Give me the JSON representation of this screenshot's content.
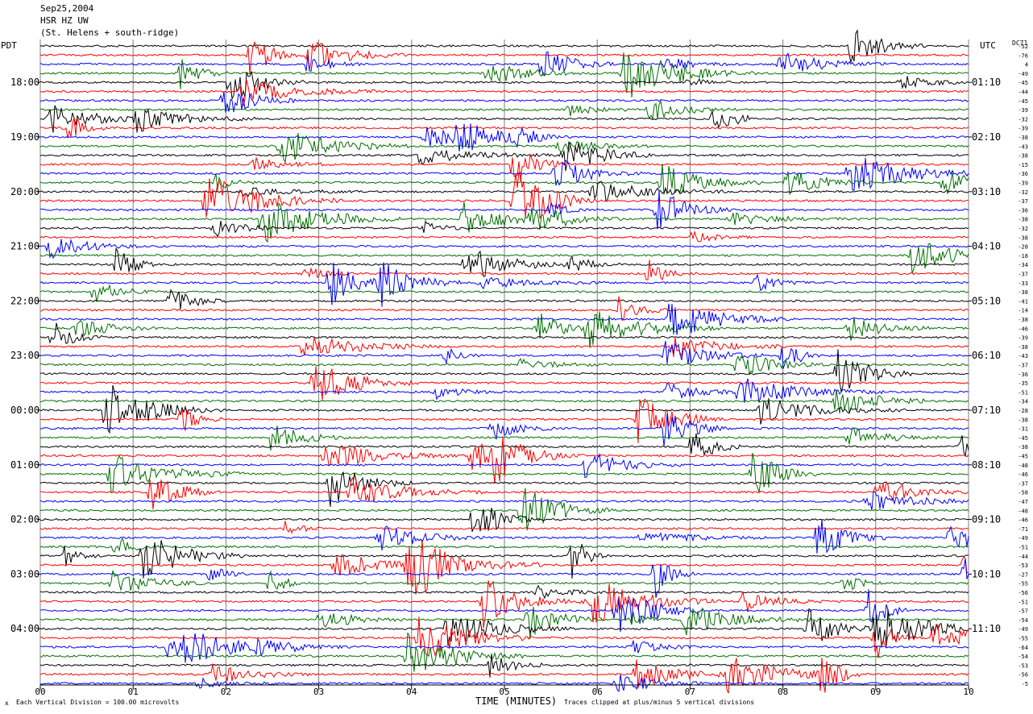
{
  "header": {
    "date_line": "Sep25,2004",
    "station_line": "HSR HZ UW",
    "location_line": "(St. Helens + south-ridge)"
  },
  "left_axis_label": "PDT",
  "right_axis_label": "UTC",
  "dc_header": "DC71",
  "footer": {
    "scale_note": "Each Vertical Division = 100.00 microvolts",
    "clip_note": "Traces clipped at plus/minus 5 vertical divisions",
    "corner_mark": "x"
  },
  "colors": {
    "cycle": [
      "#000000",
      "#ff0000",
      "#0000ff",
      "#007000"
    ],
    "grid": "#7f7f7f",
    "axis": "#000000"
  },
  "chart_data": {
    "type": "line",
    "subtype": "helicorder (seismogram drum record)",
    "xlabel": "TIME (MINUTES)",
    "x_ticks": [
      "00",
      "01",
      "02",
      "03",
      "04",
      "05",
      "06",
      "07",
      "08",
      "09",
      "10"
    ],
    "xlim": [
      0,
      10
    ],
    "grid": true,
    "left_hour_labels": [
      "18:00",
      "19:00",
      "20:00",
      "21:00",
      "22:00",
      "23:00",
      "00:00",
      "01:00",
      "02:00",
      "03:00",
      "04:00"
    ],
    "right_hour_labels": [
      "01:10",
      "02:10",
      "03:10",
      "04:10",
      "05:10",
      "06:10",
      "07:10",
      "08:10",
      "09:10",
      "10:10",
      "11:10"
    ],
    "dc_offsets": [
      -52,
      -76,
      4,
      -49,
      -45,
      -44,
      -45,
      -39,
      -32,
      -39,
      -38,
      -43,
      -38,
      -15,
      -36,
      -39,
      -32,
      -37,
      -36,
      -38,
      -32,
      -38,
      -28,
      -18,
      -34,
      -37,
      -33,
      -38,
      -41,
      -14,
      -38,
      -46,
      -39,
      -38,
      -43,
      -37,
      -36,
      -35,
      -51,
      -34,
      -28,
      -38,
      -31,
      -45,
      -38,
      -45,
      -48,
      -46,
      -37,
      -58,
      -47,
      -48,
      -46,
      -71,
      -49,
      -51,
      -44,
      -53,
      -27,
      -55,
      -56,
      -51,
      -57,
      -54,
      -49,
      -55,
      -64,
      -54,
      -53,
      -56,
      -5
    ],
    "traces_per_hour": 6,
    "minutes_per_trace": 10,
    "vertical_division_microvolts": 100.0,
    "clip_divisions": 5
  }
}
